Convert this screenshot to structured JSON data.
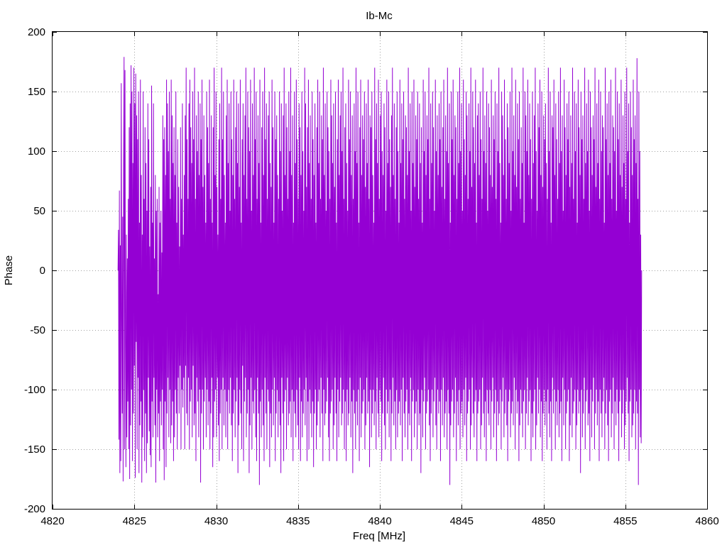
{
  "chart_data": {
    "type": "line",
    "title": "Ib-Mc",
    "xlabel": "Freq [MHz]",
    "ylabel": "Phase",
    "xlim": [
      4820,
      4860
    ],
    "ylim": [
      -200,
      200
    ],
    "x_ticks": [
      4820,
      4825,
      4830,
      4835,
      4840,
      4845,
      4850,
      4855,
      4860
    ],
    "y_ticks": [
      -200,
      -150,
      -100,
      -50,
      0,
      50,
      100,
      150,
      200
    ],
    "grid": true,
    "legend": "none",
    "color": "#9400d3",
    "series": [
      {
        "x_start": 4824.0,
        "x_end": 4856.0,
        "values": [
          0,
          34,
          -142,
          67,
          -170,
          21,
          -160,
          157,
          -40,
          -120,
          45,
          -177,
          90,
          179,
          -150,
          168,
          -60,
          -165,
          30,
          -140,
          10,
          -110,
          60,
          -150,
          120,
          -175,
          140,
          -130,
          172,
          -100,
          150,
          -160,
          90,
          -120,
          170,
          -80,
          140,
          -174,
          165,
          -60,
          130,
          -150,
          110,
          -90,
          150,
          -170,
          40,
          -130,
          160,
          -110,
          80,
          -178,
          30,
          -140,
          150,
          -100,
          60,
          -160,
          120,
          -120,
          90,
          -170,
          50,
          -145,
          140,
          -90,
          110,
          -135,
          20,
          -155,
          70,
          -165,
          155,
          -110,
          40,
          -140,
          140,
          -90,
          10,
          -130,
          80,
          -178,
          50,
          -100,
          60,
          -140,
          -20,
          -120,
          70,
          -160,
          40,
          -110,
          50,
          -130,
          15,
          -100,
          130,
          -150,
          110,
          -176,
          120,
          -110,
          80,
          -165,
          160,
          -120,
          140,
          -90,
          100,
          -140,
          150,
          -100,
          60,
          -145,
          160,
          -130,
          130,
          -110,
          90,
          -160,
          120,
          -140,
          80,
          -100,
          150,
          -120,
          40,
          -150,
          110,
          -90,
          70,
          -120,
          20,
          -80,
          120,
          -150,
          60,
          -100,
          140,
          -115,
          30,
          -90,
          80,
          -150,
          130,
          -80,
          170,
          -120,
          110,
          -130,
          60,
          -90,
          140,
          -150,
          160,
          -110,
          120,
          -100,
          90,
          -140,
          150,
          -80,
          110,
          -130,
          170,
          -120,
          60,
          -160,
          130,
          -90,
          100,
          -110,
          150,
          -140,
          80,
          -100,
          140,
          -178,
          110,
          -120,
          160,
          -100,
          70,
          -150,
          130,
          -110,
          80,
          -90,
          40,
          -140,
          150,
          -100,
          120,
          -130,
          90,
          -110,
          160,
          -150,
          60,
          -120,
          130,
          -90,
          40,
          -165,
          120,
          -140,
          170,
          -110,
          80,
          -100,
          150,
          -140,
          70,
          -90,
          30,
          -130,
          110,
          -160,
          140,
          -120,
          60,
          -100,
          170,
          -150,
          110,
          -90,
          150,
          -130,
          80,
          -100,
          40,
          -140,
          130,
          -110,
          160,
          -150,
          90,
          -100,
          140,
          -120,
          50,
          -90,
          150,
          -130,
          110,
          -160,
          80,
          -120,
          160,
          -100,
          60,
          -140,
          120,
          -110,
          150,
          -90,
          90,
          -170,
          140,
          -130,
          70,
          -100,
          160,
          -120,
          40,
          -150,
          110,
          -80,
          140,
          -160,
          80,
          -110,
          130,
          -90,
          170,
          -140,
          60,
          -120,
          150,
          -100,
          120,
          -170,
          100,
          -130,
          160,
          -90,
          50,
          -150,
          140,
          -110,
          80,
          -120,
          170,
          -100,
          110,
          -140,
          150,
          -160,
          60,
          -90,
          130,
          -120,
          90,
          -180,
          160,
          -110,
          40,
          -140,
          120,
          -100,
          150,
          -130,
          80,
          -160,
          170,
          -90,
          110,
          -120,
          140,
          -150,
          60,
          -100,
          130,
          -110,
          150,
          -165,
          90,
          -120,
          70,
          -140,
          160,
          -100,
          120,
          -130,
          40,
          -90,
          150,
          -160,
          110,
          -120,
          130,
          -100,
          80,
          -140,
          60,
          -110,
          150,
          -130,
          100,
          -170,
          140,
          -90,
          50,
          -120,
          130,
          -160,
          170,
          -110,
          80,
          -100,
          140,
          -150,
          120,
          -90,
          60,
          -130,
          150,
          -120,
          100,
          -110,
          170,
          -140,
          80,
          -100,
          130,
          -160,
          40,
          -110,
          150,
          -120,
          90,
          -140,
          160,
          -100,
          110,
          -130,
          60,
          -150,
          140,
          -90,
          120,
          -160,
          80,
          -110,
          150,
          -140,
          100,
          -120,
          50,
          -100,
          170,
          -130,
          140,
          -90,
          70,
          -160,
          120,
          -110,
          160,
          -150,
          90,
          -100,
          130,
          -120,
          60,
          -140,
          150,
          -110,
          110,
          -165,
          80,
          -120,
          140,
          -100,
          40,
          -150,
          120,
          -130,
          160,
          -110,
          90,
          -100,
          150,
          -140,
          60,
          -90,
          130,
          -120,
          110,
          -160,
          170,
          -100,
          80,
          -130,
          140,
          -120,
          50,
          -110,
          150,
          -90,
          120,
          -140,
          100,
          -160,
          60,
          -120,
          160,
          -110,
          130,
          -100,
          90,
          -150,
          140,
          -130,
          70,
          -90,
          150,
          -120,
          40,
          -160,
          110,
          -100,
          160,
          -140,
          80,
          -110,
          130,
          -90,
          150,
          -130,
          100,
          -120,
          170,
          -100,
          60,
          -150,
          120,
          -110,
          140,
          -160,
          90,
          -100,
          50,
          -130,
          160,
          -120,
          110,
          -90,
          150,
          -140,
          80,
          -110,
          130,
          -170,
          60,
          -100,
          140,
          -120,
          100,
          -150,
          170,
          -110,
          90,
          -130,
          150,
          -100,
          40,
          -160,
          120,
          -90,
          160,
          -140,
          80,
          -120,
          130,
          -110,
          110,
          -100,
          150,
          -150,
          70,
          -130,
          140,
          -90,
          90,
          -120,
          160,
          -110,
          60,
          -165,
          130,
          -100,
          120,
          -140,
          150,
          -120,
          80,
          -100,
          40,
          -130,
          170,
          -110,
          110,
          -150,
          140,
          -90,
          90,
          -120,
          160,
          -140,
          60,
          -100,
          130,
          -110,
          150,
          -160,
          100,
          -120,
          80,
          -90,
          140,
          -130,
          120,
          -150,
          50,
          -100,
          160,
          -120,
          90,
          -110,
          150,
          -140,
          110,
          -100,
          70,
          -160,
          130,
          -120,
          170,
          -90,
          80,
          -130,
          140,
          -110,
          60,
          -150,
          120,
          -100,
          150,
          -140,
          100,
          -120,
          40,
          -110,
          160,
          -130,
          90,
          -100,
          140,
          -160,
          110,
          -90,
          150,
          -120,
          60,
          -140,
          130,
          -110,
          120,
          -100,
          80,
          -150,
          170,
          -120,
          100,
          -130,
          140,
          -90,
          50,
          -160,
          150,
          -110,
          90,
          -100,
          160,
          -140,
          70,
          -120,
          130,
          -110,
          110,
          -150,
          150,
          -100,
          60,
          -130,
          140,
          -120,
          90,
          -170,
          120,
          -100,
          40,
          -140,
          160,
          -110,
          100,
          -90,
          150,
          -150,
          80,
          -120,
          130,
          -110,
          110,
          -100,
          170,
          -130,
          60,
          -160,
          140,
          -120,
          90,
          -100,
          150,
          -140,
          120,
          -110,
          50,
          -90,
          160,
          -130,
          100,
          -150,
          130,
          -100,
          80,
          -120,
          140,
          -110,
          110,
          -160,
          150,
          -100,
          70,
          -130,
          120,
          -90,
          160,
          -140,
          60,
          -120,
          130,
          -110,
          100,
          -150,
          170,
          -100,
          90,
          -120,
          140,
          -180,
          40,
          -130,
          150,
          -110,
          110,
          -100,
          160,
          -140,
          80,
          -120,
          130,
          -90,
          120,
          -160,
          60,
          -110,
          150,
          -130,
          90,
          -100,
          170,
          -150,
          100,
          -120,
          140,
          -110,
          50,
          -140,
          160,
          -100,
          110,
          -130,
          80,
          -90,
          150,
          -160,
          130,
          -120,
          60,
          -110,
          140,
          -100,
          100,
          -150,
          170,
          -130,
          70,
          -90,
          150,
          -120,
          120,
          -140,
          90,
          -110,
          160,
          -100,
          40,
          -160,
          130,
          -120,
          140,
          -110,
          80,
          -100,
          150,
          -150,
          110,
          -130,
          60,
          -90,
          170,
          -120,
          100,
          -140,
          130,
          -110,
          90,
          -160,
          150,
          -100,
          50,
          -120,
          140,
          -130,
          120,
          -100,
          80,
          -150,
          160,
          -110,
          70,
          -90,
          130,
          -140,
          110,
          -120,
          150,
          -100,
          60,
          -160,
          140,
          -110,
          100,
          -130,
          170,
          -120,
          90,
          -100,
          40,
          -150,
          150,
          -110,
          130,
          -90,
          80,
          -140,
          160,
          -120,
          110,
          -100,
          60,
          -130,
          140,
          -160,
          120,
          -110,
          90,
          -100,
          150,
          -140,
          50,
          -120,
          170,
          -110,
          100,
          -130,
          130,
          -90,
          80,
          -150,
          160,
          -100,
          70,
          -120,
          140,
          -110,
          110,
          -160,
          150,
          -130,
          60,
          -100,
          120,
          -120,
          90,
          -140,
          170,
          -110,
          40,
          -100,
          150,
          -150,
          130,
          -120,
          100,
          -90,
          160,
          -130,
          80,
          -110,
          140,
          -100,
          110,
          -160,
          60,
          -120,
          150,
          -140,
          90,
          -110,
          130,
          -100,
          170,
          -150,
          100,
          -130,
          50,
          -90,
          140,
          -120,
          120,
          -100,
          160,
          -140,
          80,
          -110,
          150,
          -160,
          70,
          -120,
          130,
          -100,
          110,
          -130,
          140,
          -110,
          90,
          -150,
          60,
          -100,
          170,
          -120,
          100,
          -140,
          150,
          -110,
          40,
          -160,
          130,
          -90,
          120,
          -120,
          160,
          -100,
          80,
          -150,
          140,
          -110,
          110,
          -130,
          60,
          -100,
          150,
          -140,
          90,
          -120,
          170,
          -110,
          100,
          -160,
          130,
          -90,
          50,
          -130,
          160,
          -100,
          120,
          -150,
          80,
          -120,
          140,
          -110,
          110,
          -100,
          150,
          -160,
          70,
          -130,
          130,
          -90,
          90,
          -140,
          170,
          -120,
          60,
          -110,
          150,
          -100,
          100,
          -150,
          140,
          -130,
          40,
          -100,
          160,
          -120,
          120,
          -110,
          80,
          -170,
          150,
          -100,
          110,
          -140,
          130,
          -120,
          60,
          -90,
          170,
          -150,
          90,
          -110,
          140,
          -100,
          100,
          -130,
          160,
          -120,
          50,
          -160,
          150,
          -100,
          120,
          -140,
          80,
          -110,
          130,
          -90,
          110,
          -150,
          170,
          -120,
          70,
          -100,
          140,
          -130,
          90,
          -110,
          160,
          -160,
          60,
          -100,
          150,
          -120,
          100,
          -140,
          130,
          -110,
          120,
          -90,
          40,
          -150,
          170,
          -120,
          110,
          -100,
          140,
          -130,
          80,
          -160,
          150,
          -110,
          90,
          -100,
          160,
          -140,
          60,
          -120,
          130,
          -90,
          120,
          -150,
          100,
          -110,
          170,
          -130,
          50,
          -100,
          150,
          -120,
          110,
          -160,
          140,
          -110,
          80,
          -100,
          160,
          -140,
          70,
          -120,
          130,
          -100,
          90,
          -150,
          150,
          -130,
          60,
          -110,
          170,
          -90,
          100,
          -120,
          140,
          -160,
          40,
          -110,
          150,
          -100,
          120,
          -140,
          80,
          -130,
          160,
          -120,
          110,
          -100,
          130,
          -150,
          90,
          -110,
          178,
          -120,
          60,
          -180,
          150,
          -100,
          100,
          -140,
          30,
          -145,
          0
        ]
      }
    ]
  }
}
